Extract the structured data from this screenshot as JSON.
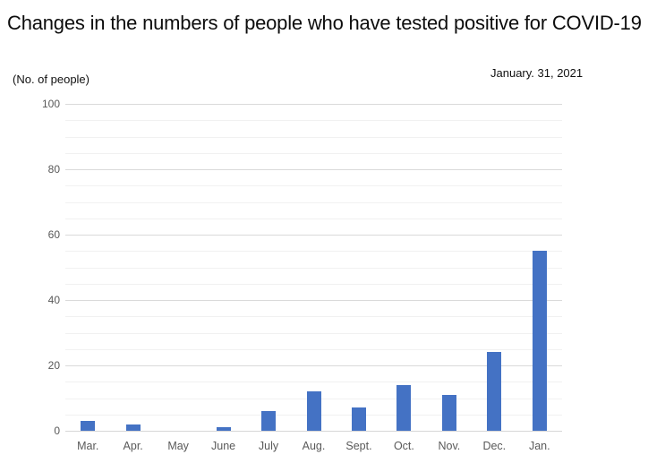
{
  "header": {
    "title": "Changes in the numbers of people who have tested positive for COVID-19",
    "date_label": "January. 31, 2021",
    "y_axis_unit": "(No. of people)"
  },
  "chart_data": {
    "type": "bar",
    "title": "Changes in the numbers of people who have tested positive for COVID-19",
    "subtitle": "January. 31, 2021",
    "categories": [
      "Mar.",
      "Apr.",
      "May",
      "June",
      "July",
      "Aug.",
      "Sept.",
      "Oct.",
      "Nov.",
      "Dec.",
      "Jan."
    ],
    "values": [
      3,
      2,
      0,
      1,
      6,
      12,
      7,
      14,
      11,
      24,
      55
    ],
    "xlabel": "",
    "ylabel": "(No. of people)",
    "ylim": [
      0,
      100
    ],
    "y_major_ticks": [
      0,
      20,
      40,
      60,
      80,
      100
    ],
    "y_minor_step": 5,
    "grid": "horizontal, minor every 5 and major every 20",
    "legend_position": "none",
    "bar_color": "#4472C4",
    "major_gridline_color": "#dadada",
    "minor_gridline_color": "#f1f1f1",
    "axis_label_color": "#595959"
  }
}
